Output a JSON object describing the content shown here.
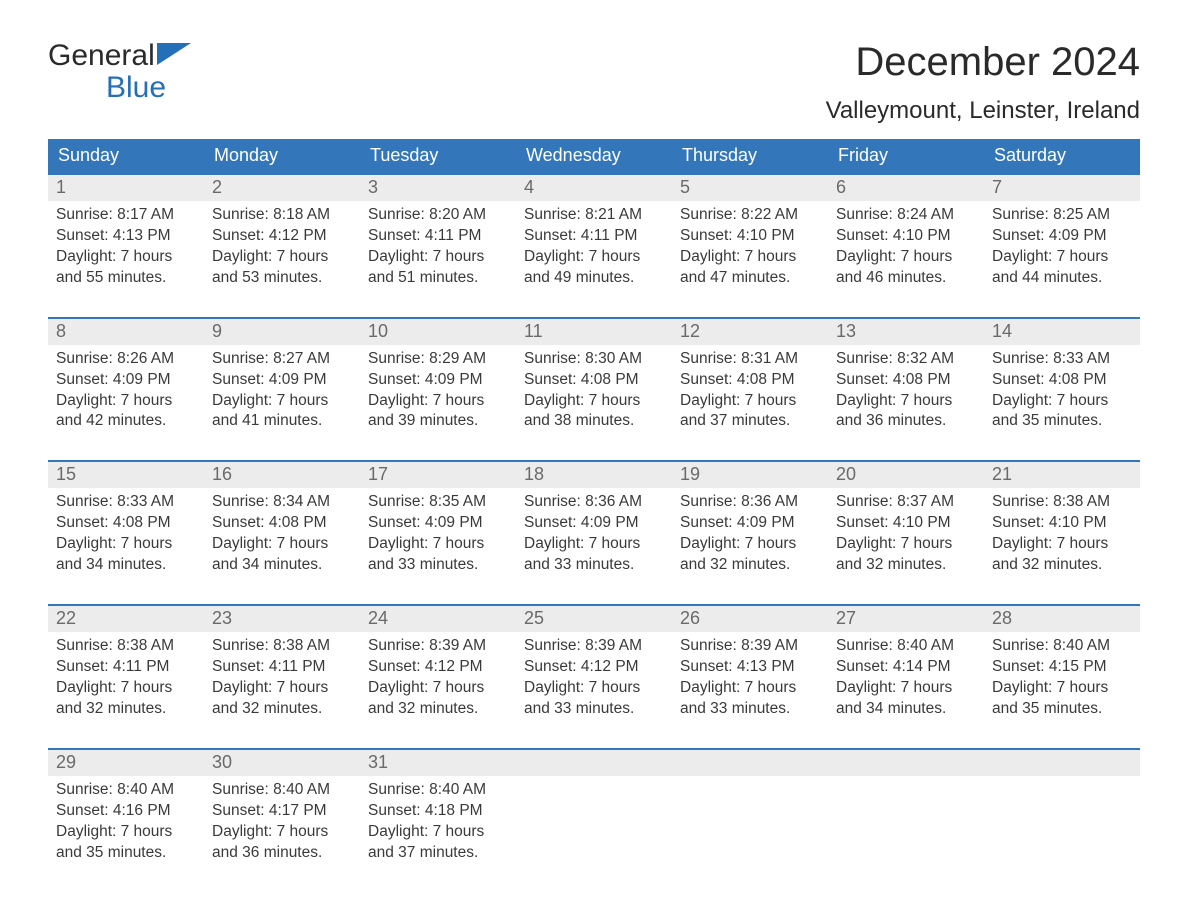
{
  "logo": {
    "top": "General",
    "bottom": "Blue"
  },
  "title": "December 2024",
  "location": "Valleymount, Leinster, Ireland",
  "colors": {
    "header_bg": "#3377ba",
    "header_text": "#ffffff",
    "daynum_bg": "#ececec",
    "daynum_text": "#6a6a6a",
    "body_text": "#3a3a3a",
    "rule": "#3377ba",
    "logo_blue": "#2370b8"
  },
  "days_of_week": [
    "Sunday",
    "Monday",
    "Tuesday",
    "Wednesday",
    "Thursday",
    "Friday",
    "Saturday"
  ],
  "weeks": [
    [
      {
        "n": "1",
        "sr": "8:17 AM",
        "ss": "4:13 PM",
        "dl": "7 hours and 55 minutes."
      },
      {
        "n": "2",
        "sr": "8:18 AM",
        "ss": "4:12 PM",
        "dl": "7 hours and 53 minutes."
      },
      {
        "n": "3",
        "sr": "8:20 AM",
        "ss": "4:11 PM",
        "dl": "7 hours and 51 minutes."
      },
      {
        "n": "4",
        "sr": "8:21 AM",
        "ss": "4:11 PM",
        "dl": "7 hours and 49 minutes."
      },
      {
        "n": "5",
        "sr": "8:22 AM",
        "ss": "4:10 PM",
        "dl": "7 hours and 47 minutes."
      },
      {
        "n": "6",
        "sr": "8:24 AM",
        "ss": "4:10 PM",
        "dl": "7 hours and 46 minutes."
      },
      {
        "n": "7",
        "sr": "8:25 AM",
        "ss": "4:09 PM",
        "dl": "7 hours and 44 minutes."
      }
    ],
    [
      {
        "n": "8",
        "sr": "8:26 AM",
        "ss": "4:09 PM",
        "dl": "7 hours and 42 minutes."
      },
      {
        "n": "9",
        "sr": "8:27 AM",
        "ss": "4:09 PM",
        "dl": "7 hours and 41 minutes."
      },
      {
        "n": "10",
        "sr": "8:29 AM",
        "ss": "4:09 PM",
        "dl": "7 hours and 39 minutes."
      },
      {
        "n": "11",
        "sr": "8:30 AM",
        "ss": "4:08 PM",
        "dl": "7 hours and 38 minutes."
      },
      {
        "n": "12",
        "sr": "8:31 AM",
        "ss": "4:08 PM",
        "dl": "7 hours and 37 minutes."
      },
      {
        "n": "13",
        "sr": "8:32 AM",
        "ss": "4:08 PM",
        "dl": "7 hours and 36 minutes."
      },
      {
        "n": "14",
        "sr": "8:33 AM",
        "ss": "4:08 PM",
        "dl": "7 hours and 35 minutes."
      }
    ],
    [
      {
        "n": "15",
        "sr": "8:33 AM",
        "ss": "4:08 PM",
        "dl": "7 hours and 34 minutes."
      },
      {
        "n": "16",
        "sr": "8:34 AM",
        "ss": "4:08 PM",
        "dl": "7 hours and 34 minutes."
      },
      {
        "n": "17",
        "sr": "8:35 AM",
        "ss": "4:09 PM",
        "dl": "7 hours and 33 minutes."
      },
      {
        "n": "18",
        "sr": "8:36 AM",
        "ss": "4:09 PM",
        "dl": "7 hours and 33 minutes."
      },
      {
        "n": "19",
        "sr": "8:36 AM",
        "ss": "4:09 PM",
        "dl": "7 hours and 32 minutes."
      },
      {
        "n": "20",
        "sr": "8:37 AM",
        "ss": "4:10 PM",
        "dl": "7 hours and 32 minutes."
      },
      {
        "n": "21",
        "sr": "8:38 AM",
        "ss": "4:10 PM",
        "dl": "7 hours and 32 minutes."
      }
    ],
    [
      {
        "n": "22",
        "sr": "8:38 AM",
        "ss": "4:11 PM",
        "dl": "7 hours and 32 minutes."
      },
      {
        "n": "23",
        "sr": "8:38 AM",
        "ss": "4:11 PM",
        "dl": "7 hours and 32 minutes."
      },
      {
        "n": "24",
        "sr": "8:39 AM",
        "ss": "4:12 PM",
        "dl": "7 hours and 32 minutes."
      },
      {
        "n": "25",
        "sr": "8:39 AM",
        "ss": "4:12 PM",
        "dl": "7 hours and 33 minutes."
      },
      {
        "n": "26",
        "sr": "8:39 AM",
        "ss": "4:13 PM",
        "dl": "7 hours and 33 minutes."
      },
      {
        "n": "27",
        "sr": "8:40 AM",
        "ss": "4:14 PM",
        "dl": "7 hours and 34 minutes."
      },
      {
        "n": "28",
        "sr": "8:40 AM",
        "ss": "4:15 PM",
        "dl": "7 hours and 35 minutes."
      }
    ],
    [
      {
        "n": "29",
        "sr": "8:40 AM",
        "ss": "4:16 PM",
        "dl": "7 hours and 35 minutes."
      },
      {
        "n": "30",
        "sr": "8:40 AM",
        "ss": "4:17 PM",
        "dl": "7 hours and 36 minutes."
      },
      {
        "n": "31",
        "sr": "8:40 AM",
        "ss": "4:18 PM",
        "dl": "7 hours and 37 minutes."
      },
      null,
      null,
      null,
      null
    ]
  ],
  "labels": {
    "sunrise": "Sunrise: ",
    "sunset": "Sunset: ",
    "daylight": "Daylight: "
  }
}
